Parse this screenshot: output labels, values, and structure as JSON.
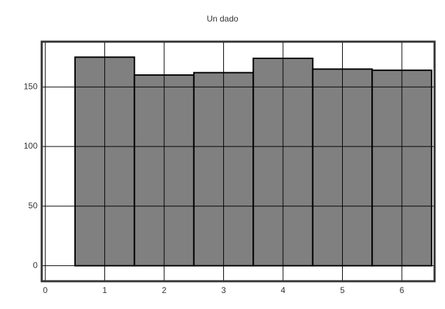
{
  "chart_data": {
    "type": "histogram",
    "title": "Un dado",
    "bins": [
      0.5,
      1.5,
      2.5,
      3.5,
      4.5,
      5.5,
      6.5
    ],
    "values": [
      175,
      160,
      162,
      174,
      165,
      164
    ],
    "color": "#808080",
    "xlim": [
      -0.06,
      6.55
    ],
    "xticks": [
      0,
      1,
      2,
      3,
      4,
      5,
      6
    ],
    "ylim": [
      -13,
      188
    ],
    "yticks": [
      0,
      50,
      100,
      150
    ],
    "grid": true
  }
}
